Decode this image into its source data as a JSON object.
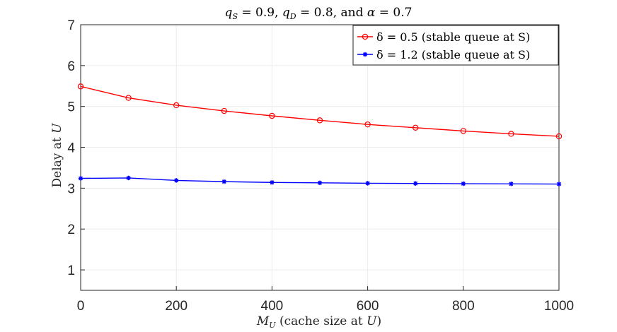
{
  "chart_data": {
    "type": "line",
    "title": "qS = 0.9, qD = 0.8, and α = 0.7",
    "xlabel": "MU (cache size at U)",
    "ylabel": "Delay at U",
    "xlim": [
      0,
      1000
    ],
    "ylim": [
      0.5,
      7
    ],
    "xticks": [
      0,
      200,
      400,
      600,
      800,
      1000
    ],
    "yticks": [
      1,
      2,
      3,
      4,
      5,
      6,
      7
    ],
    "grid": true,
    "legend_position": "top-right",
    "x": [
      0,
      100,
      200,
      300,
      400,
      500,
      600,
      700,
      800,
      900,
      1000
    ],
    "series": [
      {
        "name": "δ = 0.5 (stable queue at S)",
        "color": "#ff0000",
        "marker": "circle",
        "values": [
          5.49,
          5.21,
          5.03,
          4.89,
          4.77,
          4.66,
          4.56,
          4.48,
          4.4,
          4.33,
          4.27
        ]
      },
      {
        "name": "δ = 1.2 (stable queue at S)",
        "color": "#0000ff",
        "marker": "asterisk",
        "values": [
          3.24,
          3.25,
          3.19,
          3.16,
          3.14,
          3.13,
          3.12,
          3.115,
          3.11,
          3.105,
          3.1
        ]
      }
    ]
  }
}
